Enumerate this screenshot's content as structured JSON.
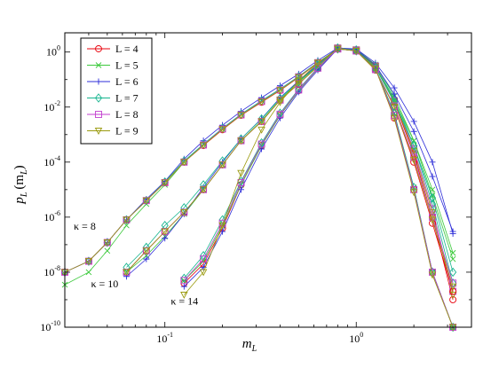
{
  "chart_data": {
    "type": "line",
    "xscale": "log",
    "yscale": "log",
    "xlim": [
      0.03,
      4.0
    ],
    "ylim": [
      1e-10,
      5.0
    ],
    "xlabel": "m",
    "xlabel_sub": "L",
    "ylabel": "p",
    "ylabel_sub": "L",
    "ylabel_arg": "(m",
    "ylabel_arg_sub": "L",
    "ylabel_close": ")",
    "x_ticks": [
      {
        "value": 0.1,
        "base": "10",
        "exp": "-1"
      },
      {
        "value": 1,
        "base": "10",
        "exp": "0"
      }
    ],
    "y_ticks": [
      {
        "value": 1e-10,
        "base": "10",
        "exp": "-10"
      },
      {
        "value": 1e-08,
        "base": "10",
        "exp": "-8"
      },
      {
        "value": 1e-06,
        "base": "10",
        "exp": "-6"
      },
      {
        "value": 0.0001,
        "base": "10",
        "exp": "-4"
      },
      {
        "value": 0.01,
        "base": "10",
        "exp": "-2"
      },
      {
        "value": 1,
        "base": "10",
        "exp": "0"
      }
    ],
    "legend_position": "top-left",
    "series": [
      {
        "name": "L = 4",
        "color": "#e8000b",
        "marker": "circle"
      },
      {
        "name": "L = 5",
        "color": "#3cc93c",
        "marker": "x"
      },
      {
        "name": "L = 6",
        "color": "#2d2dd8",
        "marker": "plus"
      },
      {
        "name": "L = 7",
        "color": "#16b58f",
        "marker": "diamond"
      },
      {
        "name": "L = 8",
        "color": "#c33ecf",
        "marker": "square"
      },
      {
        "name": "L = 9",
        "color": "#9b9b10",
        "marker": "triangle-down"
      }
    ],
    "groups": [
      {
        "label": "κ = 8",
        "x": [
          0.03,
          0.04,
          0.05,
          0.063,
          0.08,
          0.1,
          0.126,
          0.159,
          0.2,
          0.25,
          0.32,
          0.4,
          0.5,
          0.63,
          0.8,
          1.0,
          1.26,
          1.58,
          2.0,
          2.5,
          3.2
        ],
        "curves": [
          [
            1e-08,
            2.5e-08,
            1.2e-07,
            8e-07,
            4e-06,
            1.8e-05,
            0.0001,
            0.0004,
            0.0015,
            0.005,
            0.015,
            0.04,
            0.12,
            0.4,
            1.3,
            1.2,
            0.3,
            0.015,
            0.0002,
            1e-06,
            1e-09
          ],
          [
            3.5e-09,
            1e-08,
            6e-08,
            5e-07,
            3e-06,
            1.5e-05,
            0.0001,
            0.00045,
            0.0016,
            0.0055,
            0.017,
            0.045,
            0.13,
            0.42,
            1.3,
            1.25,
            0.35,
            0.025,
            0.0006,
            6e-06,
            3e-08
          ],
          [
            1e-08,
            2.5e-08,
            1.2e-07,
            8e-07,
            4.5e-06,
            2e-05,
            0.00013,
            0.0006,
            0.0022,
            0.007,
            0.022,
            0.06,
            0.16,
            0.5,
            1.4,
            1.3,
            0.4,
            0.05,
            0.003,
            0.0001,
            2.5e-07
          ],
          [
            1e-08,
            2.5e-08,
            1.2e-07,
            8e-07,
            4e-06,
            1.9e-05,
            0.00011,
            0.00045,
            0.0017,
            0.0055,
            0.017,
            0.045,
            0.13,
            0.42,
            1.3,
            1.2,
            0.32,
            0.02,
            0.0004,
            3e-06,
            4e-09
          ],
          [
            1e-08,
            2.5e-08,
            1.2e-07,
            8e-07,
            4e-06,
            1.8e-05,
            0.0001,
            0.00042,
            0.0016,
            0.0052,
            0.016,
            0.042,
            0.125,
            0.41,
            1.3,
            1.2,
            0.31,
            0.017,
            0.0003,
            2e-06,
            2e-09
          ],
          [
            1e-08,
            2.5e-08,
            1.2e-07,
            8e-07,
            4e-06,
            1.8e-05,
            0.0001,
            0.00041,
            0.00155,
            0.0051,
            0.0155,
            0.041,
            0.122,
            0.405,
            1.3,
            1.2,
            0.3,
            0.016,
            0.00025,
            1.5e-06,
            1.5e-09
          ]
        ]
      },
      {
        "label": "κ = 10",
        "x": [
          0.063,
          0.08,
          0.1,
          0.126,
          0.159,
          0.2,
          0.25,
          0.32,
          0.4,
          0.5,
          0.63,
          0.8,
          1.0,
          1.26,
          1.58,
          2.0,
          2.5,
          3.2
        ],
        "curves": [
          [
            1e-08,
            6e-08,
            3e-07,
            1.5e-06,
            1e-05,
            8e-05,
            0.0006,
            0.003,
            0.018,
            0.07,
            0.3,
            1.4,
            1.1,
            0.22,
            0.01,
            0.0001,
            6e-07,
            2e-09
          ],
          [
            1e-08,
            4e-08,
            2e-07,
            1.3e-06,
            1e-05,
            8e-05,
            0.0006,
            0.0032,
            0.019,
            0.08,
            0.32,
            1.4,
            1.15,
            0.28,
            0.018,
            0.0006,
            1e-05,
            5e-08
          ],
          [
            7e-09,
            3e-08,
            1.7e-07,
            1.3e-06,
            1.2e-05,
            0.0001,
            0.0007,
            0.0038,
            0.022,
            0.09,
            0.35,
            1.45,
            1.2,
            0.33,
            0.03,
            0.0013,
            3e-05,
            3e-07
          ],
          [
            1.5e-08,
            8e-08,
            5e-07,
            2.2e-06,
            1.5e-05,
            0.00011,
            0.0007,
            0.0037,
            0.021,
            0.085,
            0.33,
            1.42,
            1.15,
            0.27,
            0.015,
            0.0004,
            5e-06,
            1e-08
          ],
          [
            1e-08,
            6e-08,
            3e-07,
            1.5e-06,
            1e-05,
            8e-05,
            0.0006,
            0.003,
            0.018,
            0.07,
            0.3,
            1.4,
            1.1,
            0.23,
            0.011,
            0.00015,
            1e-06,
            4e-09
          ],
          [
            1e-08,
            6e-08,
            3e-07,
            1.5e-06,
            1e-05,
            8e-05,
            0.0006,
            0.003,
            0.018,
            0.07,
            0.3,
            1.4,
            1.1,
            0.22,
            0.01,
            0.00012,
            8e-07,
            3e-09
          ]
        ]
      },
      {
        "label": "κ = 14",
        "x": [
          0.126,
          0.159,
          0.2,
          0.25,
          0.32,
          0.4,
          0.5,
          0.63,
          0.8,
          1.0,
          1.26,
          1.58,
          2.0,
          2.5,
          3.2
        ],
        "curves": [
          [
            4e-09,
            2e-08,
            4e-07,
            1.5e-05,
            0.0004,
            0.005,
            0.04,
            0.25,
            1.3,
            1.1,
            0.25,
            0.004,
            1e-05,
            1e-08,
            1e-10
          ],
          [
            5e-09,
            2.5e-08,
            5e-07,
            1.5e-05,
            0.0004,
            0.005,
            0.04,
            0.25,
            1.3,
            1.1,
            0.25,
            0.006,
            1.2e-05,
            1e-08,
            1e-10
          ],
          [
            3e-09,
            1.5e-08,
            3e-07,
            1e-05,
            0.0003,
            0.004,
            0.035,
            0.22,
            1.3,
            1.1,
            0.25,
            0.005,
            1e-05,
            1e-08,
            1e-10
          ],
          [
            6e-09,
            4e-08,
            8e-07,
            2e-05,
            0.0005,
            0.006,
            0.045,
            0.27,
            1.3,
            1.1,
            0.25,
            0.006,
            1.2e-05,
            1e-08,
            1e-10
          ],
          [
            5e-09,
            3e-08,
            6e-07,
            1.8e-05,
            0.00045,
            0.0055,
            0.042,
            0.26,
            1.3,
            1.1,
            0.25,
            0.005,
            1e-05,
            1e-08,
            1e-10
          ],
          [
            1.5e-09,
            1e-08,
            5e-07,
            4e-05,
            0.0015,
            0.015,
            0.09,
            0.4,
            1.3,
            1.1,
            0.25,
            0.004,
            8e-06,
            8e-09,
            1e-10
          ]
        ]
      }
    ]
  }
}
